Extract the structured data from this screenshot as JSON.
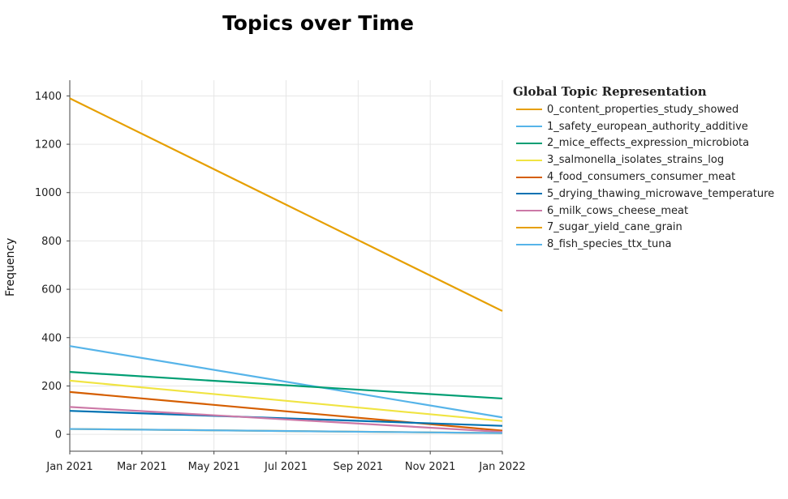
{
  "chart_data": {
    "type": "line",
    "title": "Topics over Time",
    "xlabel": "",
    "ylabel": "Frequency",
    "x": [
      "2021-01-01",
      "2022-01-01"
    ],
    "x_ticks": [
      "Jan 2021",
      "Mar 2021",
      "May 2021",
      "Jul 2021",
      "Sep 2021",
      "Nov 2021",
      "Jan 2022"
    ],
    "y_ticks": [
      0,
      200,
      400,
      600,
      800,
      1000,
      1200,
      1400
    ],
    "ylim": [
      -70,
      1465
    ],
    "grid": true,
    "legend_title": "Global Topic Representation",
    "legend_position": "right",
    "series": [
      {
        "name": "0_content_properties_study_showed",
        "color": "#E69F00",
        "values": [
          1390,
          510
        ]
      },
      {
        "name": "1_safety_european_authority_additive",
        "color": "#56B4E9",
        "values": [
          365,
          70
        ]
      },
      {
        "name": "2_mice_effects_expression_microbiota",
        "color": "#009E73",
        "values": [
          258,
          148
        ]
      },
      {
        "name": "3_salmonella_isolates_strains_log",
        "color": "#F0E442",
        "values": [
          222,
          55
        ]
      },
      {
        "name": "4_food_consumers_consumer_meat",
        "color": "#D55E00",
        "values": [
          175,
          15
        ]
      },
      {
        "name": "5_drying_thawing_microwave_temperature",
        "color": "#0072B2",
        "values": [
          97,
          35
        ]
      },
      {
        "name": "6_milk_cows_cheese_meat",
        "color": "#CC79A7",
        "values": [
          113,
          10
        ]
      },
      {
        "name": "7_sugar_yield_cane_grain",
        "color": "#E69F00",
        "values": [
          22,
          5
        ]
      },
      {
        "name": "8_fish_species_ttx_tuna",
        "color": "#56B4E9",
        "values": [
          22,
          5
        ]
      }
    ]
  }
}
